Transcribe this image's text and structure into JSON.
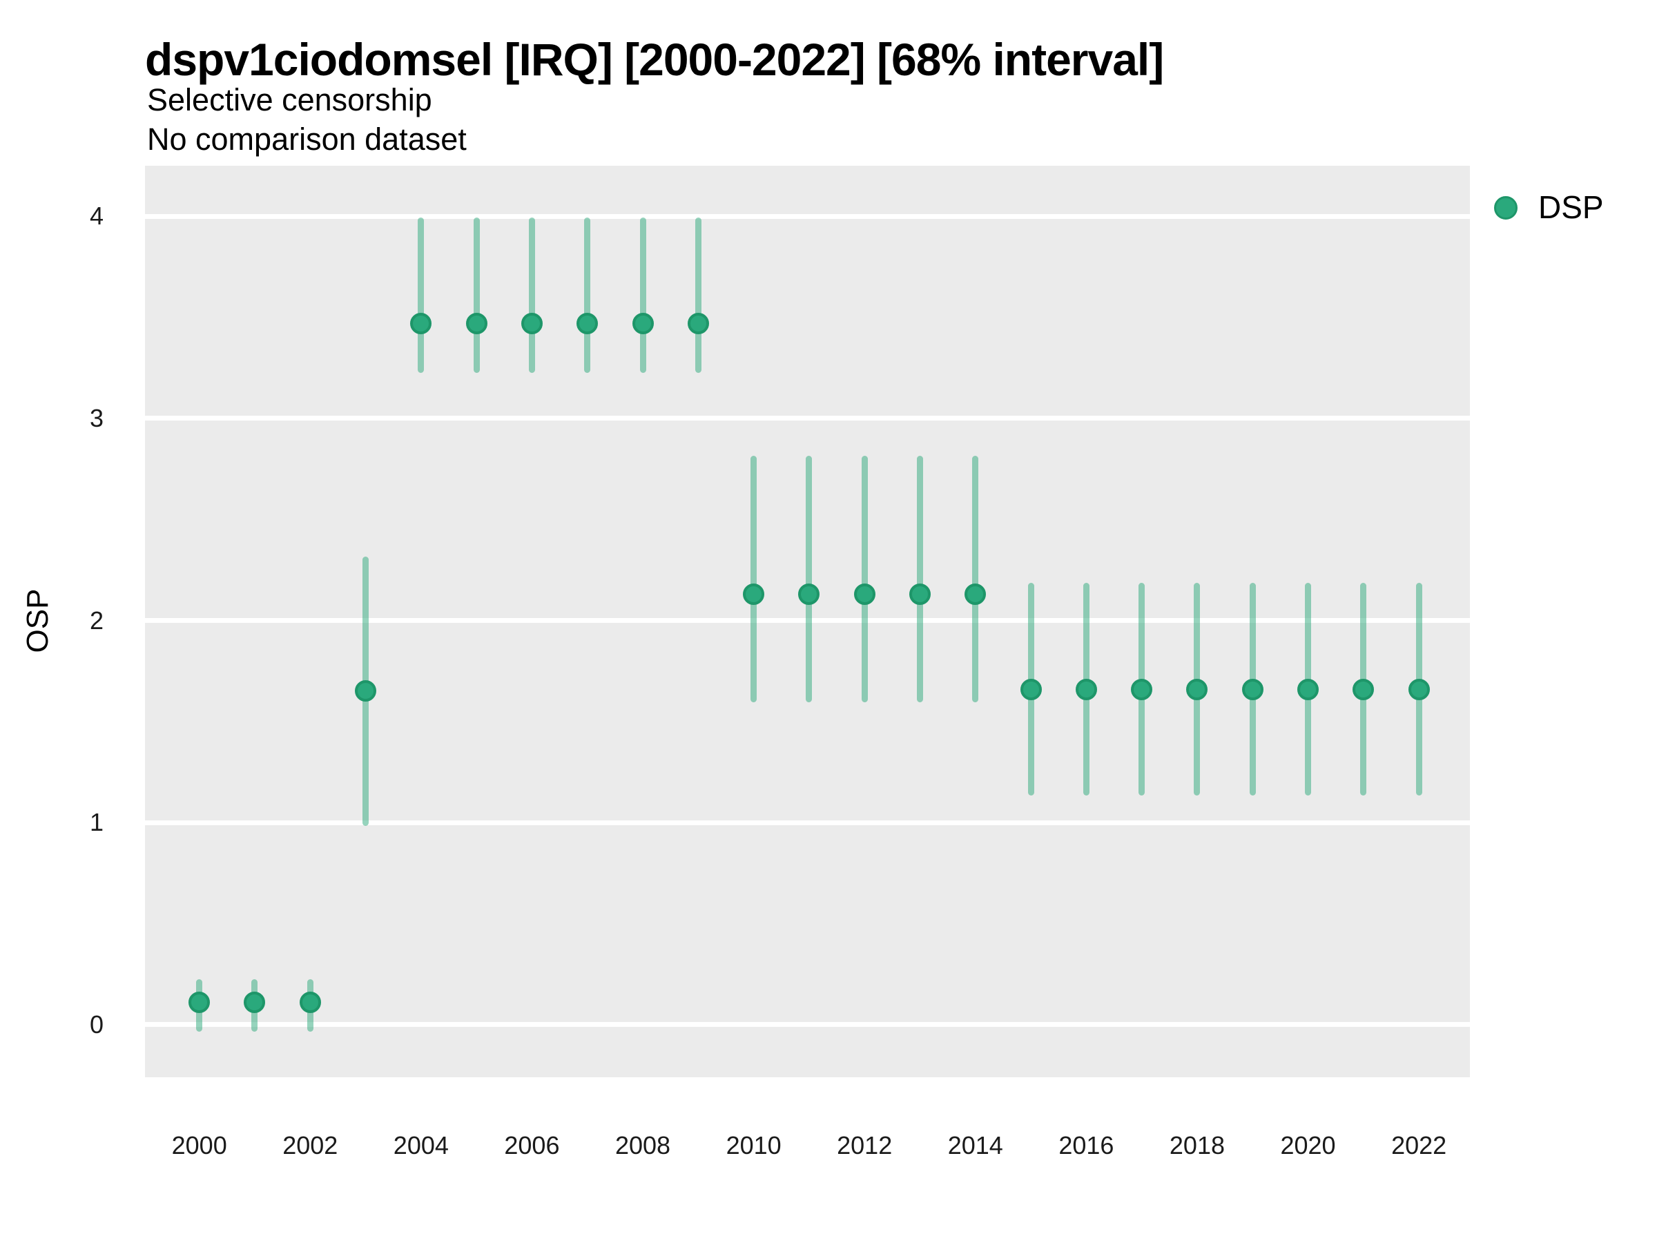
{
  "chart_data": {
    "type": "scatter",
    "subtype": "pointrange",
    "title": "dspv1ciodomsel [IRQ] [2000-2022] [68% interval]",
    "subtitle_line1": "Selective censorship",
    "subtitle_line2": "No comparison dataset",
    "xlabel": "",
    "ylabel": "OSP",
    "interval": "68%",
    "grid": "horizontal-major-only",
    "xlim": [
      1999.02,
      2022.92
    ],
    "ylim": [
      -0.26,
      4.25
    ],
    "y_ticks": [
      0,
      1,
      2,
      3,
      4
    ],
    "x_ticks": [
      2000,
      2002,
      2004,
      2006,
      2008,
      2010,
      2012,
      2014,
      2016,
      2018,
      2020,
      2022
    ],
    "legend": {
      "position": "right",
      "entries": [
        {
          "label": "DSP",
          "color": "#2AA97C"
        }
      ]
    },
    "series": [
      {
        "name": "DSP",
        "points": [
          {
            "year": 2000,
            "value": 0.11,
            "lo": -0.02,
            "hi": 0.21
          },
          {
            "year": 2001,
            "value": 0.11,
            "lo": -0.02,
            "hi": 0.21
          },
          {
            "year": 2002,
            "value": 0.11,
            "lo": -0.02,
            "hi": 0.21
          },
          {
            "year": 2003,
            "value": 1.65,
            "lo": 1.0,
            "hi": 2.3
          },
          {
            "year": 2004,
            "value": 3.47,
            "lo": 3.24,
            "hi": 3.98
          },
          {
            "year": 2005,
            "value": 3.47,
            "lo": 3.24,
            "hi": 3.98
          },
          {
            "year": 2006,
            "value": 3.47,
            "lo": 3.24,
            "hi": 3.98
          },
          {
            "year": 2007,
            "value": 3.47,
            "lo": 3.24,
            "hi": 3.98
          },
          {
            "year": 2008,
            "value": 3.47,
            "lo": 3.24,
            "hi": 3.98
          },
          {
            "year": 2009,
            "value": 3.47,
            "lo": 3.24,
            "hi": 3.98
          },
          {
            "year": 2010,
            "value": 2.13,
            "lo": 1.61,
            "hi": 2.8
          },
          {
            "year": 2011,
            "value": 2.13,
            "lo": 1.61,
            "hi": 2.8
          },
          {
            "year": 2012,
            "value": 2.13,
            "lo": 1.61,
            "hi": 2.8
          },
          {
            "year": 2013,
            "value": 2.13,
            "lo": 1.61,
            "hi": 2.8
          },
          {
            "year": 2014,
            "value": 2.13,
            "lo": 1.61,
            "hi": 2.8
          },
          {
            "year": 2015,
            "value": 1.66,
            "lo": 1.15,
            "hi": 2.17
          },
          {
            "year": 2016,
            "value": 1.66,
            "lo": 1.15,
            "hi": 2.17
          },
          {
            "year": 2017,
            "value": 1.66,
            "lo": 1.15,
            "hi": 2.17
          },
          {
            "year": 2018,
            "value": 1.66,
            "lo": 1.15,
            "hi": 2.17
          },
          {
            "year": 2019,
            "value": 1.66,
            "lo": 1.15,
            "hi": 2.17
          },
          {
            "year": 2020,
            "value": 1.66,
            "lo": 1.15,
            "hi": 2.17
          },
          {
            "year": 2021,
            "value": 1.66,
            "lo": 1.15,
            "hi": 2.17
          },
          {
            "year": 2022,
            "value": 1.66,
            "lo": 1.15,
            "hi": 2.17
          }
        ]
      }
    ],
    "colors": {
      "point_fill": "#2AA97C",
      "point_stroke": "#1E9669",
      "range_color": "#2EA97B",
      "range_opacity": 0.5,
      "panel_bg": "#EBEBEB",
      "grid": "#FFFFFF",
      "text": "#000000",
      "tick_text": "#1A1A1A"
    }
  }
}
